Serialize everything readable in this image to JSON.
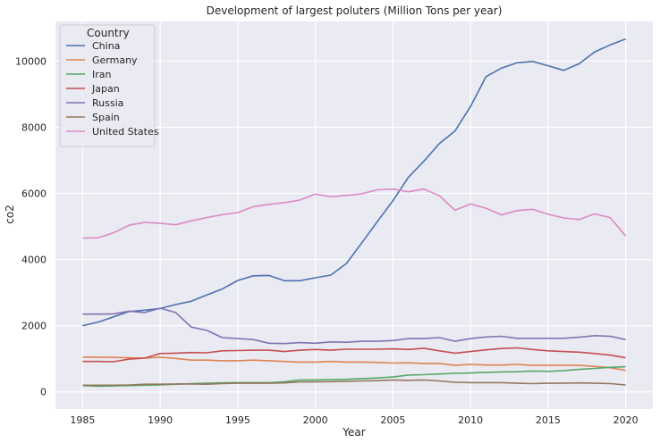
{
  "chart_data": {
    "type": "line",
    "title": "Development of largest poluters (Million Tons per year)",
    "xlabel": "Year",
    "ylabel": "co2",
    "xlim": [
      1983.25,
      2021.75
    ],
    "ylim": [
      -520,
      11200
    ],
    "xticks": [
      1985,
      1990,
      1995,
      2000,
      2005,
      2010,
      2015,
      2020
    ],
    "yticks": [
      0,
      2000,
      4000,
      6000,
      8000,
      10000
    ],
    "grid": true,
    "background": "#eaeaf2",
    "legend": {
      "title": "Country",
      "position": "top-left"
    },
    "x": [
      1985,
      1986,
      1987,
      1988,
      1989,
      1990,
      1991,
      1992,
      1993,
      1994,
      1995,
      1996,
      1997,
      1998,
      1999,
      2000,
      2001,
      2002,
      2003,
      2004,
      2005,
      2006,
      2007,
      2008,
      2009,
      2010,
      2011,
      2012,
      2013,
      2014,
      2015,
      2016,
      2017,
      2018,
      2019,
      2020
    ],
    "series": [
      {
        "name": "China",
        "color": "#4c72b0",
        "values": [
          2000,
          2110,
          2270,
          2430,
          2470,
          2520,
          2640,
          2740,
          2930,
          3110,
          3370,
          3510,
          3520,
          3360,
          3360,
          3450,
          3530,
          3880,
          4510,
          5150,
          5780,
          6490,
          6980,
          7510,
          7890,
          8630,
          9530,
          9790,
          9950,
          9990,
          9860,
          9720,
          9920,
          10280,
          10490,
          10670
        ]
      },
      {
        "name": "Germany",
        "color": "#dd8452",
        "values": [
          1050,
          1050,
          1040,
          1030,
          1020,
          1050,
          1010,
          960,
          960,
          940,
          940,
          960,
          940,
          920,
          900,
          900,
          920,
          900,
          900,
          890,
          870,
          880,
          860,
          860,
          800,
          830,
          810,
          810,
          830,
          800,
          800,
          800,
          800,
          770,
          730,
          650
        ]
      },
      {
        "name": "Iran",
        "color": "#55a868",
        "values": [
          190,
          170,
          180,
          190,
          200,
          210,
          230,
          250,
          260,
          270,
          280,
          280,
          280,
          300,
          360,
          360,
          370,
          380,
          400,
          420,
          450,
          510,
          520,
          540,
          560,
          570,
          590,
          600,
          610,
          630,
          620,
          640,
          680,
          710,
          740,
          760
        ]
      },
      {
        "name": "Japan",
        "color": "#c44e52",
        "values": [
          920,
          920,
          910,
          990,
          1020,
          1160,
          1170,
          1190,
          1180,
          1240,
          1250,
          1260,
          1260,
          1220,
          1260,
          1280,
          1260,
          1290,
          1290,
          1290,
          1300,
          1280,
          1320,
          1240,
          1170,
          1220,
          1270,
          1310,
          1330,
          1280,
          1240,
          1220,
          1200,
          1160,
          1110,
          1030
        ]
      },
      {
        "name": "Russia",
        "color": "#8172b3",
        "values": [
          2350,
          2350,
          2360,
          2440,
          2400,
          2530,
          2400,
          1960,
          1860,
          1640,
          1610,
          1580,
          1470,
          1460,
          1490,
          1470,
          1510,
          1500,
          1530,
          1530,
          1550,
          1610,
          1610,
          1640,
          1530,
          1610,
          1660,
          1680,
          1620,
          1620,
          1620,
          1620,
          1650,
          1700,
          1680,
          1580
        ]
      },
      {
        "name": "Spain",
        "color": "#937860",
        "values": [
          200,
          200,
          200,
          210,
          230,
          230,
          240,
          240,
          230,
          250,
          260,
          260,
          260,
          270,
          300,
          300,
          310,
          320,
          330,
          340,
          360,
          350,
          360,
          330,
          290,
          280,
          280,
          280,
          260,
          250,
          260,
          260,
          270,
          260,
          250,
          210
        ]
      },
      {
        "name": "United States",
        "color": "#da8bc3",
        "values": [
          4650,
          4660,
          4810,
          5040,
          5120,
          5100,
          5050,
          5170,
          5270,
          5360,
          5420,
          5600,
          5670,
          5720,
          5800,
          5980,
          5900,
          5940,
          5990,
          6110,
          6130,
          6050,
          6130,
          5930,
          5490,
          5680,
          5550,
          5350,
          5480,
          5520,
          5370,
          5260,
          5210,
          5380,
          5270,
          4710
        ]
      }
    ]
  }
}
